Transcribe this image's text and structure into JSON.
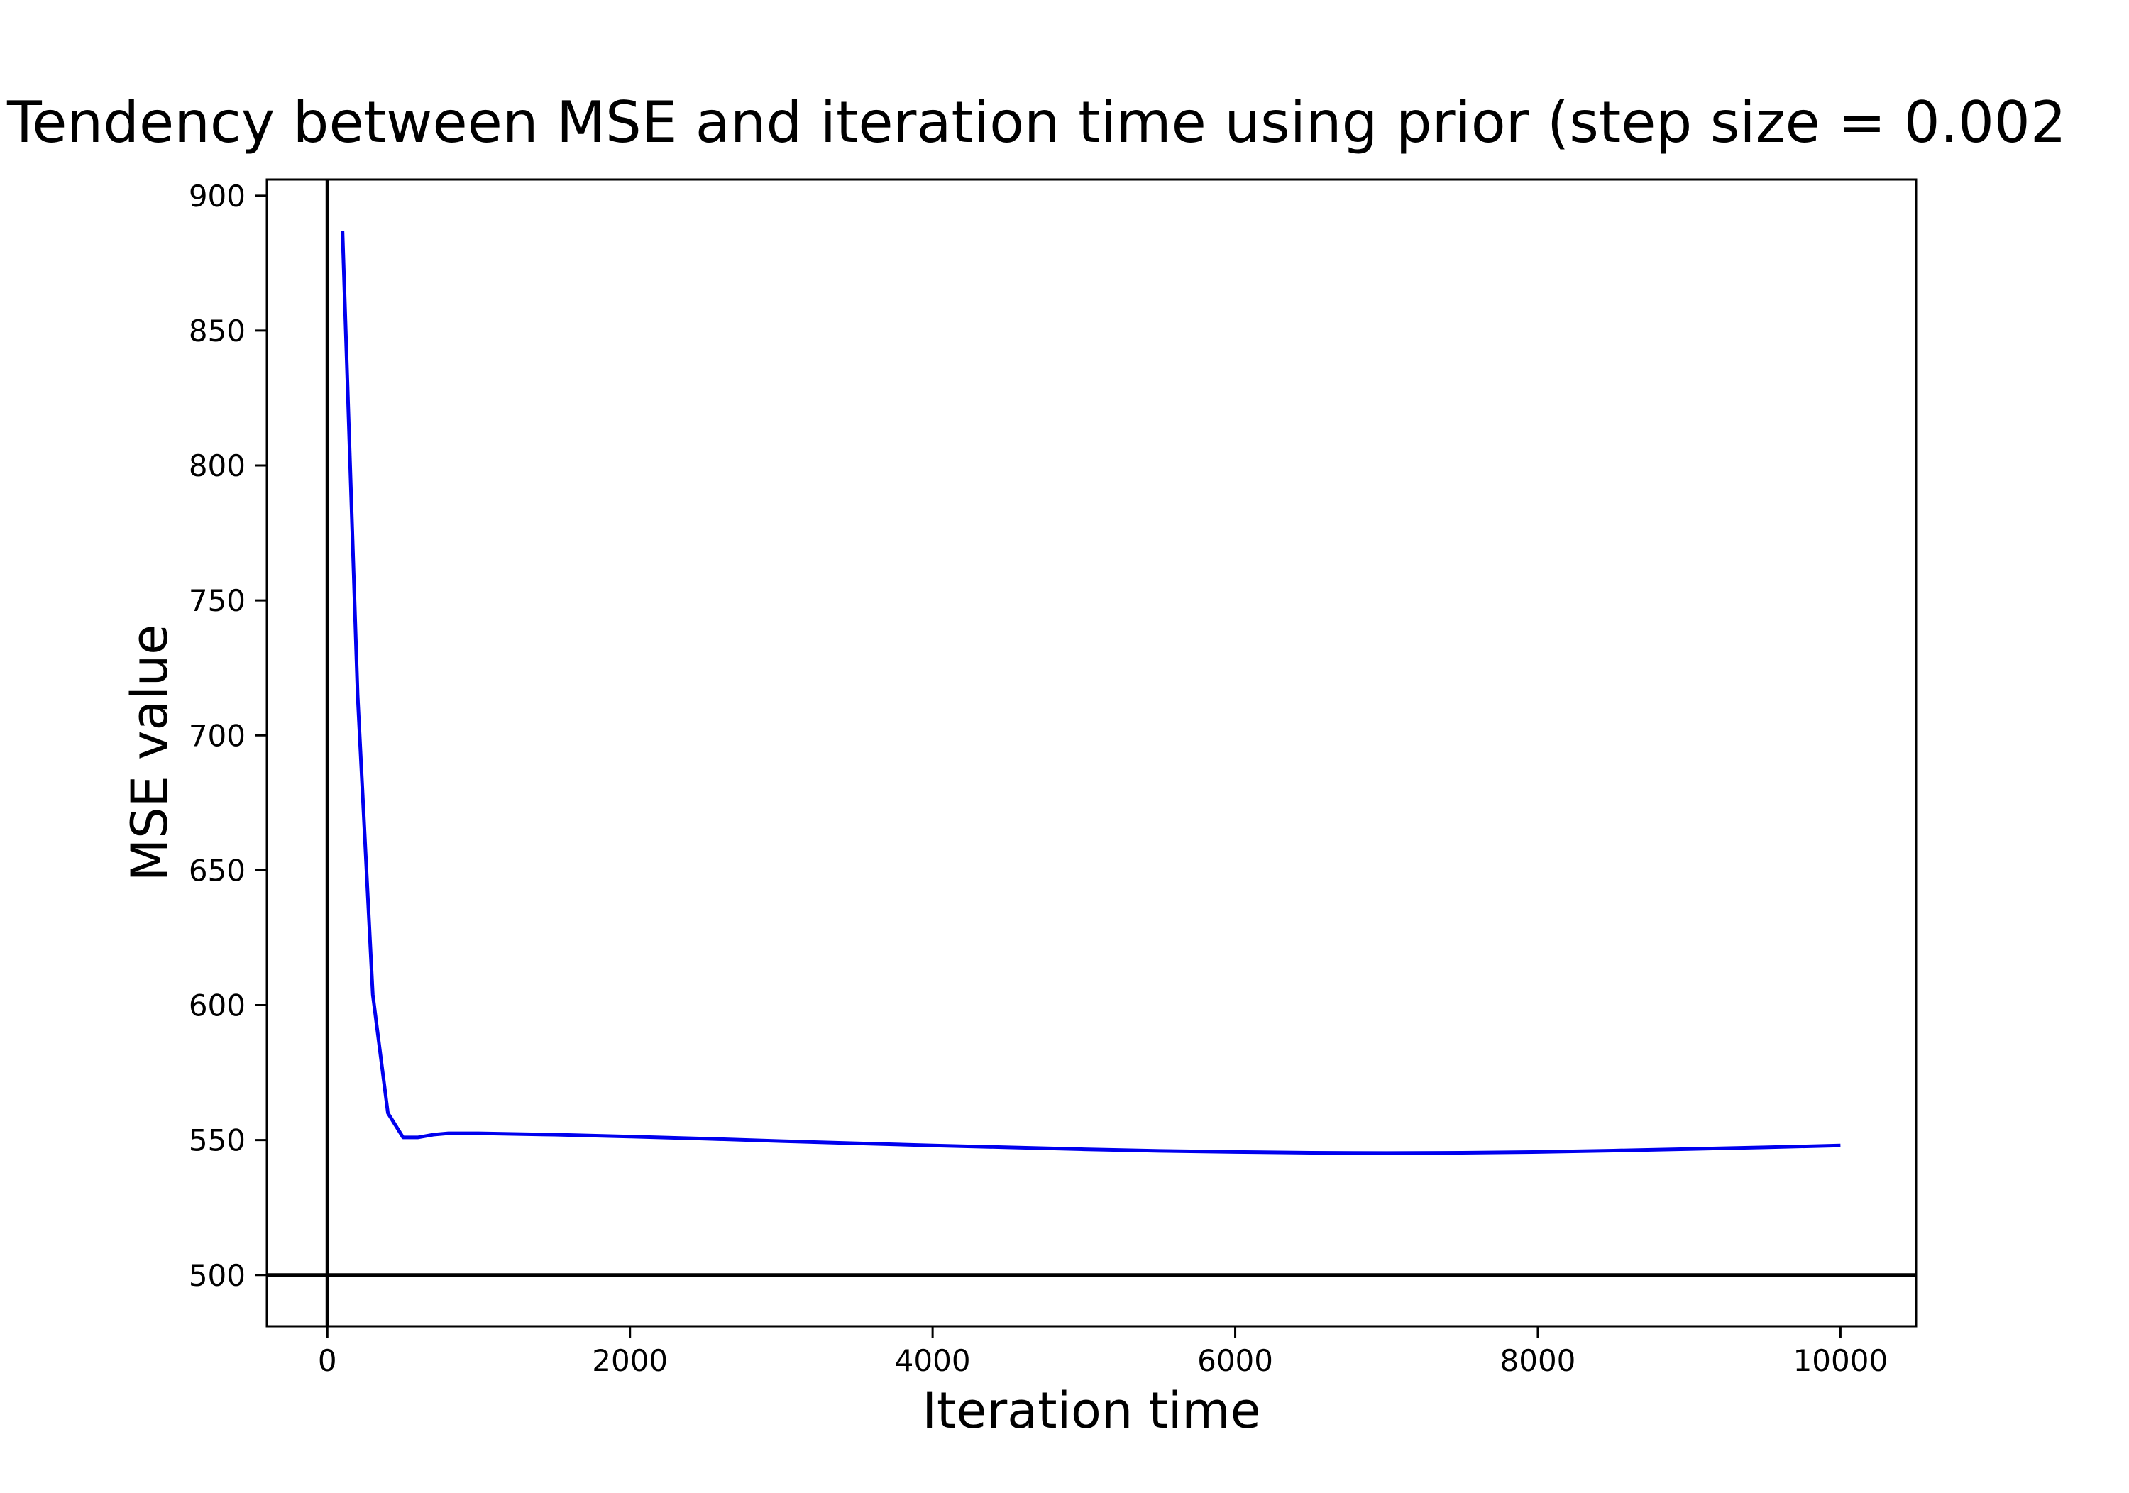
{
  "chart_data": {
    "type": "line",
    "title": "Tendency between MSE and iteration time using prior (step size = 0.002",
    "xlabel": "Iteration time",
    "ylabel": "MSE value",
    "xlim": [
      -400,
      10500
    ],
    "ylim": [
      481,
      906
    ],
    "xticks": [
      0,
      2000,
      4000,
      6000,
      8000,
      10000
    ],
    "yticks": [
      500,
      550,
      600,
      650,
      700,
      750,
      800,
      850,
      900
    ],
    "grid": false,
    "legend": "none",
    "reference_lines": {
      "vertical_x": 0,
      "horizontal_y": 500,
      "color": "#000000"
    },
    "series": [
      {
        "color": "#0000ee",
        "x": [
          100,
          200,
          300,
          400,
          500,
          600,
          700,
          800,
          900,
          1000,
          1500,
          2000,
          2500,
          3000,
          3500,
          4000,
          4500,
          5000,
          5500,
          6000,
          6500,
          7000,
          7500,
          8000,
          8500,
          9000,
          9500,
          10000
        ],
        "y": [
          887,
          715,
          604,
          560,
          551,
          551,
          552,
          552.5,
          552.5,
          552.5,
          552,
          551.3,
          550.5,
          549.6,
          548.8,
          548,
          547.3,
          546.6,
          546,
          545.6,
          545.3,
          545.2,
          545.3,
          545.6,
          546.1,
          546.7,
          547.3,
          548
        ]
      }
    ]
  }
}
